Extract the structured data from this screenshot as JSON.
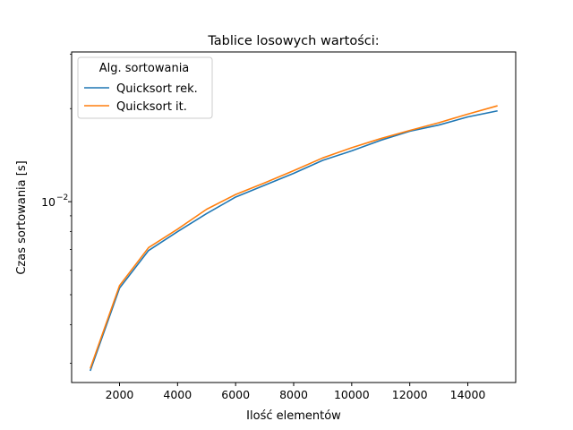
{
  "chart_data": {
    "type": "line",
    "title": "Tablice losowych wartości:",
    "xlabel": "Ilość elementów",
    "ylabel": "Czas sortowania [s]",
    "yscale": "log",
    "xlim": [
      350,
      15650
    ],
    "ylim": [
      0.0026,
      0.0305
    ],
    "x_ticks": [
      2000,
      4000,
      6000,
      8000,
      10000,
      12000,
      14000
    ],
    "x_tick_labels": [
      "2000",
      "4000",
      "6000",
      "8000",
      "10000",
      "12000",
      "14000"
    ],
    "y_major_ticks": [
      0.01
    ],
    "y_tick_label_base": "10",
    "y_tick_label_exp": "−2",
    "y_minor_ticks": [
      0.003,
      0.004,
      0.005,
      0.006,
      0.007,
      0.008,
      0.009,
      0.02,
      0.03
    ],
    "grid": false,
    "legend": {
      "title": "Alg. sortowania",
      "placement": "top-left"
    },
    "x": [
      1000,
      2000,
      3000,
      4000,
      5000,
      6000,
      7000,
      8000,
      9000,
      10000,
      11000,
      12000,
      13000,
      14000,
      15000
    ],
    "series": [
      {
        "name": "Quicksort rek.",
        "color": "#1f77b4",
        "values": [
          0.00285,
          0.00525,
          0.00695,
          0.008,
          0.00915,
          0.01035,
          0.0113,
          0.01235,
          0.0136,
          0.0146,
          0.0158,
          0.0169,
          0.0177,
          0.0188,
          0.01965
        ]
      },
      {
        "name": "Quicksort it.",
        "color": "#ff7f0e",
        "values": [
          0.0029,
          0.00535,
          0.0071,
          0.00815,
          0.00945,
          0.01055,
          0.0115,
          0.0126,
          0.01385,
          0.01495,
          0.016,
          0.017,
          0.018,
          0.0192,
          0.0204
        ]
      }
    ]
  }
}
